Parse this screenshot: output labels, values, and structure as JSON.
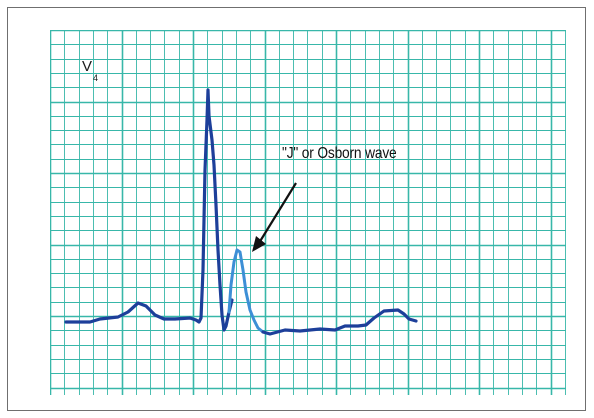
{
  "figure": {
    "lead_label": {
      "main": "V",
      "subscript": "4"
    },
    "annotation": "\"J\" or Osborn wave",
    "colors": {
      "grid": "#38b7a9",
      "trace_primary": "#1d3f9a",
      "trace_osborn": "#3d8fd6",
      "arrow": "#111111",
      "frame": "#6f6f6f"
    }
  }
}
